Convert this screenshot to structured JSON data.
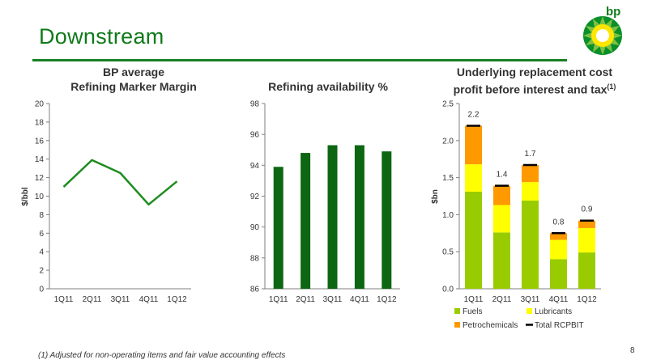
{
  "header": {
    "title": "Downstream",
    "logo_text": "bp",
    "colors": {
      "title": "#0f7a1a",
      "rule": "#1a7f24"
    }
  },
  "footnote": "(1)  Adjusted for non-operating items and fair value accounting effects",
  "page_number": "8",
  "chart_data": [
    {
      "type": "line",
      "title_line1": "BP average",
      "title_line2": "Refining Marker Margin",
      "ylabel": "$/bbl",
      "categories": [
        "1Q11",
        "2Q11",
        "3Q11",
        "4Q11",
        "1Q12"
      ],
      "series": [
        {
          "values": [
            11.0,
            13.9,
            12.5,
            9.1,
            11.6
          ],
          "color": "#1e8c1e"
        }
      ],
      "ylim": [
        0,
        20
      ],
      "yticks": [
        "0",
        "2",
        "4",
        "6",
        "8",
        "10",
        "12",
        "14",
        "16",
        "18",
        "20"
      ]
    },
    {
      "type": "bar",
      "title": "Refining availability %",
      "categories": [
        "1Q11",
        "2Q11",
        "3Q11",
        "4Q11",
        "1Q12"
      ],
      "values": [
        93.9,
        94.8,
        95.3,
        95.3,
        94.9
      ],
      "color": "#0c6612",
      "ylim": [
        86,
        98
      ],
      "yticks": [
        "86",
        "88",
        "90",
        "92",
        "94",
        "96",
        "98"
      ]
    },
    {
      "type": "bar",
      "stacked": true,
      "title_line1": "Underlying replacement cost",
      "title_line2": "profit before interest and tax",
      "title_sup": "(1)",
      "ylabel": "$bn",
      "categories": [
        "1Q11",
        "2Q11",
        "3Q11",
        "4Q11",
        "1Q12"
      ],
      "series": [
        {
          "name": "Fuels",
          "values": [
            1.31,
            0.76,
            1.19,
            0.4,
            0.49
          ],
          "color": "#99cc00"
        },
        {
          "name": "Lubricants",
          "values": [
            0.37,
            0.37,
            0.25,
            0.26,
            0.33
          ],
          "color": "#ffff00"
        },
        {
          "name": "Petrochemicals",
          "values": [
            0.52,
            0.26,
            0.23,
            0.09,
            0.1
          ],
          "color": "#ff9900"
        }
      ],
      "total": {
        "name": "Total RCPBIT",
        "values": [
          2.2,
          1.39,
          1.67,
          0.75,
          0.92
        ],
        "color": "#000000"
      },
      "data_labels": [
        "2.2",
        "1.4",
        "1.7",
        "0.8",
        "0.9"
      ],
      "ylim": [
        0,
        2.5
      ],
      "yticks": [
        "0.0",
        "0.5",
        "1.0",
        "1.5",
        "2.0",
        "2.5"
      ]
    }
  ]
}
